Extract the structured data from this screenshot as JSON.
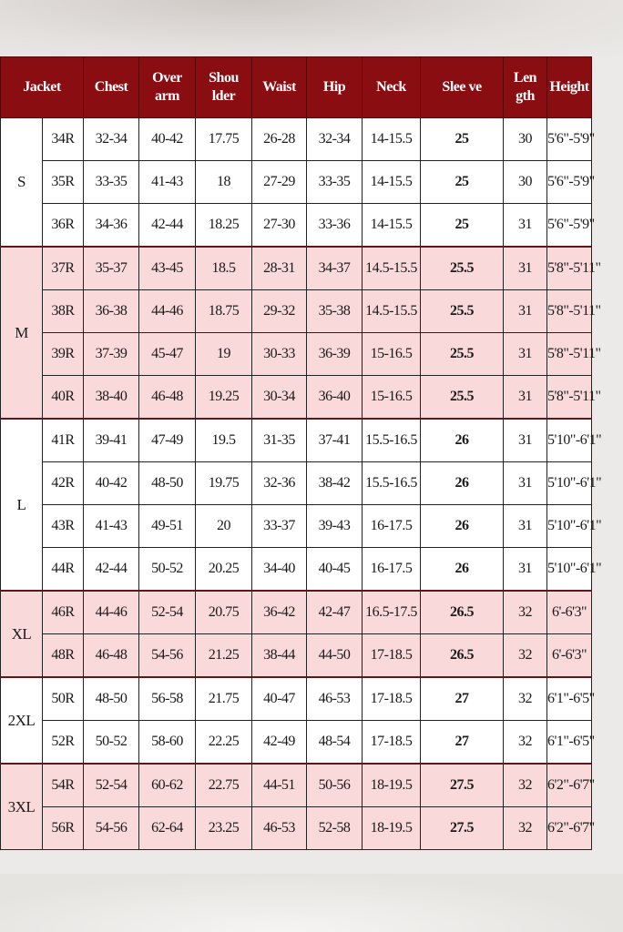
{
  "colors": {
    "header": "#8a0d12",
    "pink": "#f9d9d9",
    "white": "#ffffff"
  },
  "headers": [
    "Jacket",
    "Chest",
    "Over arm",
    "Shou lder",
    "Waist",
    "Hip",
    "Neck",
    "Slee ve",
    "Len gth",
    "Height"
  ],
  "groups": [
    {
      "label": "S",
      "tint": "white",
      "rows": [
        [
          "34R",
          "32-34",
          "40-42",
          "17.75",
          "26-28",
          "32-34",
          "14-15.5",
          "25",
          "30",
          "5'6\"-5'9\""
        ],
        [
          "35R",
          "33-35",
          "41-43",
          "18",
          "27-29",
          "33-35",
          "14-15.5",
          "25",
          "30",
          "5'6\"-5'9\""
        ],
        [
          "36R",
          "34-36",
          "42-44",
          "18.25",
          "27-30",
          "33-36",
          "14-15.5",
          "25",
          "31",
          "5'6\"-5'9\""
        ]
      ]
    },
    {
      "label": "M",
      "tint": "pink",
      "rows": [
        [
          "37R",
          "35-37",
          "43-45",
          "18.5",
          "28-31",
          "34-37",
          "14.5-15.5",
          "25.5",
          "31",
          "5'8\"-5'11\""
        ],
        [
          "38R",
          "36-38",
          "44-46",
          "18.75",
          "29-32",
          "35-38",
          "14.5-15.5",
          "25.5",
          "31",
          "5'8\"-5'11\""
        ],
        [
          "39R",
          "37-39",
          "45-47",
          "19",
          "30-33",
          "36-39",
          "15-16.5",
          "25.5",
          "31",
          "5'8\"-5'11\""
        ],
        [
          "40R",
          "38-40",
          "46-48",
          "19.25",
          "30-34",
          "36-40",
          "15-16.5",
          "25.5",
          "31",
          "5'8\"-5'11\""
        ]
      ]
    },
    {
      "label": "L",
      "tint": "white",
      "rows": [
        [
          "41R",
          "39-41",
          "47-49",
          "19.5",
          "31-35",
          "37-41",
          "15.5-16.5",
          "26",
          "31",
          "5'10\"-6'1\""
        ],
        [
          "42R",
          "40-42",
          "48-50",
          "19.75",
          "32-36",
          "38-42",
          "15.5-16.5",
          "26",
          "31",
          "5'10\"-6'1\""
        ],
        [
          "43R",
          "41-43",
          "49-51",
          "20",
          "33-37",
          "39-43",
          "16-17.5",
          "26",
          "31",
          "5'10\"-6'1\""
        ],
        [
          "44R",
          "42-44",
          "50-52",
          "20.25",
          "34-40",
          "40-45",
          "16-17.5",
          "26",
          "31",
          "5'10\"-6'1\""
        ]
      ]
    },
    {
      "label": "XL",
      "tint": "pink",
      "rows": [
        [
          "46R",
          "44-46",
          "52-54",
          "20.75",
          "36-42",
          "42-47",
          "16.5-17.5",
          "26.5",
          "32",
          "6'-6'3\""
        ],
        [
          "48R",
          "46-48",
          "54-56",
          "21.25",
          "38-44",
          "44-50",
          "17-18.5",
          "26.5",
          "32",
          "6'-6'3\""
        ]
      ]
    },
    {
      "label": "2XL",
      "tint": "white",
      "rows": [
        [
          "50R",
          "48-50",
          "56-58",
          "21.75",
          "40-47",
          "46-53",
          "17-18.5",
          "27",
          "32",
          "6'1\"-6'5\""
        ],
        [
          "52R",
          "50-52",
          "58-60",
          "22.25",
          "42-49",
          "48-54",
          "17-18.5",
          "27",
          "32",
          "6'1\"-6'5\""
        ]
      ]
    },
    {
      "label": "3XL",
      "tint": "pink",
      "rows": [
        [
          "54R",
          "52-54",
          "60-62",
          "22.75",
          "44-51",
          "50-56",
          "18-19.5",
          "27.5",
          "32",
          "6'2\"-6'7\""
        ],
        [
          "56R",
          "54-56",
          "62-64",
          "23.25",
          "46-53",
          "52-58",
          "18-19.5",
          "27.5",
          "32",
          "6'2\"-6'7\""
        ]
      ]
    }
  ]
}
